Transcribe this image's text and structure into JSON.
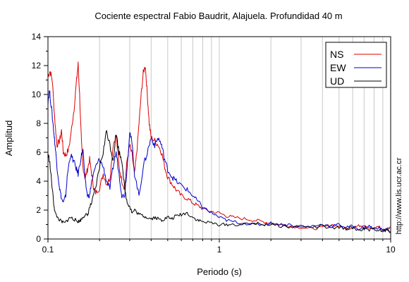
{
  "chart_data": {
    "type": "line",
    "title": "Cociente espectral Fabio Baudrit, Alajuela. Profundidad 40 m",
    "xlabel": "Periodo (s)",
    "ylabel": "Amplitud",
    "xscale": "log",
    "xlim": [
      0.1,
      10
    ],
    "ylim": [
      0,
      14
    ],
    "xtick_labels": [
      "0.1",
      "1",
      "10"
    ],
    "ytick_labels": [
      "0",
      "2",
      "4",
      "6",
      "8",
      "10",
      "12",
      "14"
    ],
    "grid": "vertical minor (log)",
    "legend_position": "top-right",
    "credit": "http://www.lis.ucr.ac.cr",
    "series": [
      {
        "name": "NS",
        "color": "#dd0000",
        "x": [
          0.1,
          0.103,
          0.106,
          0.11,
          0.113,
          0.117,
          0.12,
          0.123,
          0.127,
          0.132,
          0.137,
          0.142,
          0.147,
          0.15,
          0.153,
          0.157,
          0.16,
          0.165,
          0.17,
          0.175,
          0.18,
          0.185,
          0.19,
          0.2,
          0.21,
          0.22,
          0.23,
          0.24,
          0.25,
          0.26,
          0.27,
          0.28,
          0.29,
          0.3,
          0.31,
          0.32,
          0.33,
          0.34,
          0.35,
          0.36,
          0.37,
          0.38,
          0.39,
          0.4,
          0.42,
          0.44,
          0.46,
          0.48,
          0.5,
          0.53,
          0.56,
          0.6,
          0.65,
          0.7,
          0.75,
          0.8,
          0.9,
          1.0,
          1.1,
          1.2,
          1.4,
          1.6,
          1.8,
          2.0,
          2.3,
          2.6,
          3.0,
          3.5,
          4.0,
          4.5,
          5.0,
          5.5,
          6.0,
          6.5,
          7.0,
          7.5,
          8.0,
          8.5,
          9.0,
          9.5,
          10.0
        ],
        "y": [
          11.3,
          11.6,
          11.0,
          8.0,
          6.5,
          6.8,
          7.5,
          6.0,
          5.8,
          6.2,
          7.5,
          9.0,
          11.0,
          12.1,
          10.0,
          6.5,
          5.0,
          4.2,
          4.8,
          5.5,
          4.5,
          3.5,
          3.2,
          3.5,
          4.5,
          3.8,
          4.2,
          6.5,
          7.2,
          5.0,
          4.0,
          3.5,
          5.5,
          6.5,
          5.8,
          4.5,
          6.0,
          8.0,
          10.0,
          11.5,
          12.0,
          10.0,
          8.0,
          7.0,
          6.8,
          6.5,
          6.0,
          5.0,
          4.3,
          3.8,
          3.4,
          3.0,
          2.8,
          2.5,
          2.3,
          2.1,
          1.9,
          1.8,
          1.6,
          1.5,
          1.4,
          1.3,
          1.2,
          1.1,
          1.0,
          0.9,
          0.8,
          0.7,
          0.8,
          1.0,
          0.9,
          0.7,
          0.8,
          0.9,
          1.0,
          0.8,
          0.7,
          0.9,
          0.6,
          0.7,
          0.8
        ]
      },
      {
        "name": "EW",
        "color": "#0000cc",
        "x": [
          0.1,
          0.102,
          0.105,
          0.108,
          0.11,
          0.113,
          0.117,
          0.12,
          0.123,
          0.127,
          0.13,
          0.135,
          0.14,
          0.145,
          0.15,
          0.155,
          0.16,
          0.165,
          0.17,
          0.175,
          0.18,
          0.19,
          0.2,
          0.21,
          0.22,
          0.23,
          0.24,
          0.25,
          0.26,
          0.27,
          0.28,
          0.29,
          0.3,
          0.31,
          0.32,
          0.34,
          0.36,
          0.38,
          0.4,
          0.42,
          0.44,
          0.46,
          0.48,
          0.5,
          0.53,
          0.56,
          0.6,
          0.65,
          0.7,
          0.75,
          0.8,
          0.9,
          1.0,
          1.1,
          1.2,
          1.4,
          1.6,
          1.8,
          2.0,
          2.3,
          2.6,
          3.0,
          3.5,
          4.0,
          4.5,
          5.0,
          5.5,
          6.0,
          6.5,
          7.0,
          7.5,
          8.0,
          8.5,
          9.0,
          9.5,
          10.0
        ],
        "y": [
          9.5,
          10.3,
          9.0,
          7.5,
          6.5,
          5.0,
          3.5,
          2.8,
          2.5,
          3.0,
          4.5,
          5.8,
          5.5,
          5.0,
          4.5,
          5.5,
          6.2,
          4.0,
          3.0,
          3.0,
          4.0,
          5.0,
          5.5,
          5.0,
          4.0,
          3.5,
          5.0,
          6.0,
          4.5,
          3.0,
          3.0,
          5.0,
          7.5,
          6.5,
          4.5,
          3.0,
          5.0,
          6.0,
          7.0,
          6.5,
          7.0,
          6.5,
          5.5,
          4.8,
          4.3,
          4.0,
          3.7,
          3.4,
          3.0,
          2.6,
          2.2,
          1.8,
          1.5,
          1.3,
          1.2,
          1.1,
          1.0,
          1.0,
          1.1,
          1.0,
          1.0,
          0.8,
          0.9,
          1.0,
          0.9,
          1.0,
          0.8,
          0.9,
          0.7,
          0.8,
          0.9,
          0.7,
          0.8,
          0.6,
          0.7,
          0.5
        ]
      },
      {
        "name": "UD",
        "color": "#000000",
        "x": [
          0.1,
          0.102,
          0.105,
          0.108,
          0.11,
          0.115,
          0.12,
          0.125,
          0.13,
          0.135,
          0.14,
          0.145,
          0.15,
          0.155,
          0.16,
          0.165,
          0.17,
          0.175,
          0.18,
          0.19,
          0.2,
          0.21,
          0.22,
          0.23,
          0.24,
          0.25,
          0.26,
          0.27,
          0.28,
          0.29,
          0.3,
          0.31,
          0.32,
          0.34,
          0.36,
          0.38,
          0.4,
          0.42,
          0.44,
          0.46,
          0.48,
          0.5,
          0.53,
          0.56,
          0.6,
          0.65,
          0.7,
          0.75,
          0.8,
          0.9,
          1.0,
          1.1,
          1.2,
          1.4,
          1.6,
          1.8,
          2.0,
          2.3,
          2.6,
          3.0,
          3.5,
          4.0,
          4.5,
          5.0,
          5.5,
          6.0,
          6.5,
          7.0,
          7.5,
          8.0,
          8.5,
          9.0,
          9.5,
          10.0
        ],
        "y": [
          5.8,
          5.5,
          4.0,
          2.5,
          1.8,
          1.4,
          1.2,
          1.1,
          1.3,
          1.5,
          1.4,
          1.3,
          1.2,
          1.3,
          1.5,
          1.7,
          1.6,
          2.2,
          2.5,
          3.5,
          5.0,
          6.0,
          7.5,
          6.5,
          5.5,
          7.3,
          6.0,
          5.5,
          3.5,
          2.5,
          2.3,
          1.8,
          2.0,
          1.7,
          1.6,
          1.5,
          1.4,
          1.5,
          1.4,
          1.3,
          1.4,
          1.5,
          1.4,
          1.6,
          1.7,
          1.8,
          1.5,
          1.3,
          1.2,
          1.1,
          1.0,
          1.0,
          1.0,
          1.0,
          1.1,
          1.0,
          1.0,
          0.9,
          0.8,
          0.9,
          0.8,
          0.9,
          0.7,
          0.8,
          0.7,
          0.8,
          0.6,
          0.7,
          0.6,
          0.7,
          0.6,
          0.5,
          0.6,
          0.5
        ]
      }
    ]
  }
}
